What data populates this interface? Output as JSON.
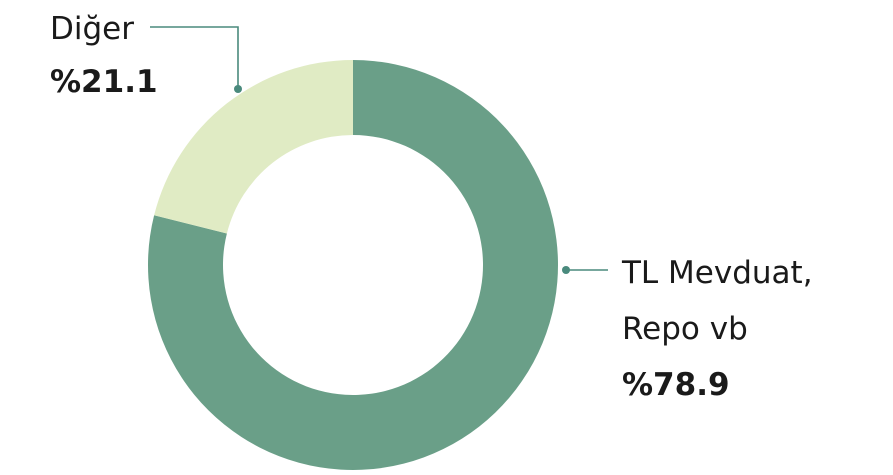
{
  "chart_data": {
    "type": "pie",
    "variant": "donut",
    "slices": [
      {
        "label_lines": [
          "TL Mevduat,",
          "Repo vb"
        ],
        "value": 78.9,
        "value_label": "%78.9",
        "color": "#6a9f88"
      },
      {
        "label_lines": [
          "Diğer"
        ],
        "value": 21.1,
        "value_label": "%21.1",
        "color": "#e0ebc4"
      }
    ],
    "start": "12 o'clock",
    "direction": "clockwise",
    "legend": "none"
  }
}
